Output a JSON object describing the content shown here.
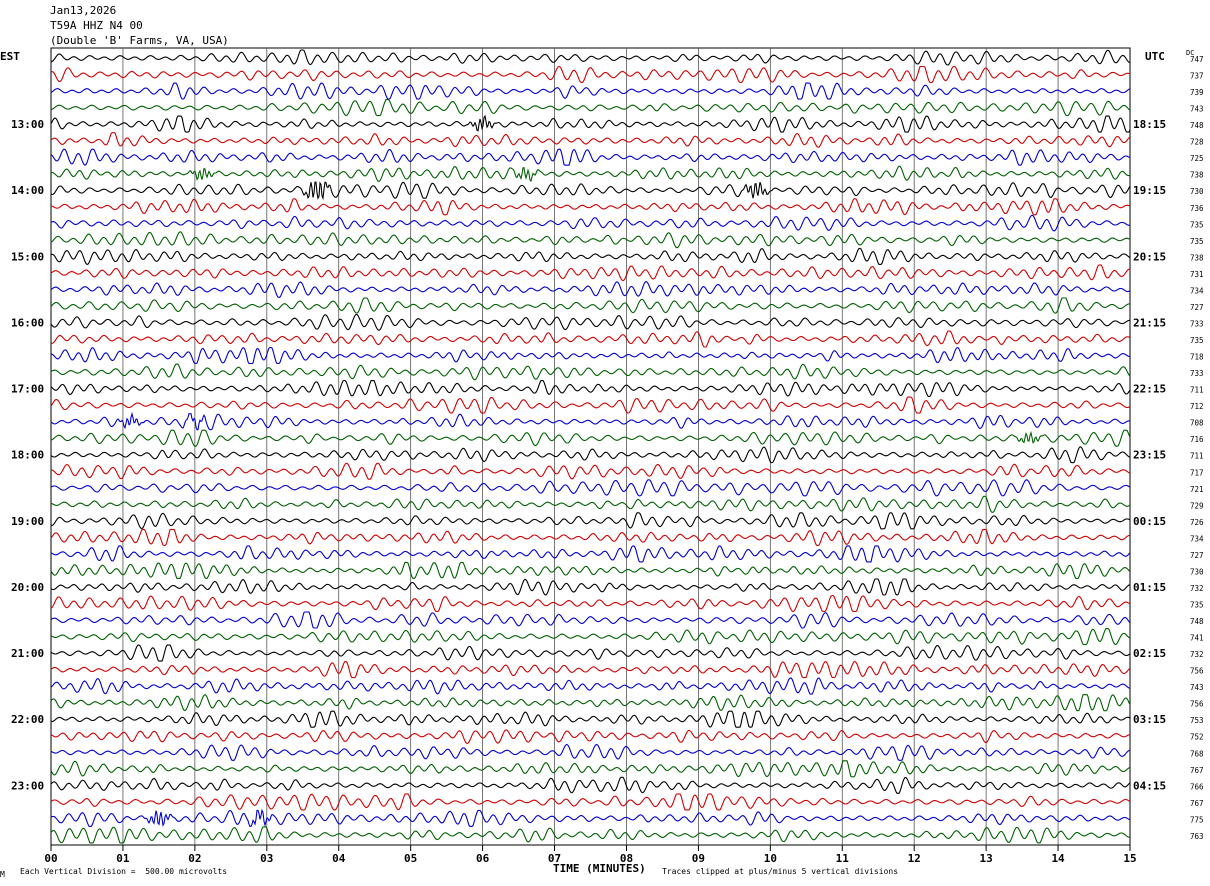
{
  "header": {
    "date": "Jan13,2026",
    "station": "T59A HHZ N4 00",
    "location": "(Double 'B' Farms, VA, USA)"
  },
  "left_timezone": "EST",
  "right_timezone": "UTC",
  "dc_label": "DC",
  "footer": {
    "scale_note": "Each Vertical Division =  500.00 microvolts",
    "clip_note": "Traces clipped at plus/minus 5 vertical divisions",
    "corner_mark": "M"
  },
  "colors": {
    "cycle": [
      "#000000",
      "#d00000",
      "#0000d0",
      "#006000"
    ],
    "grid": "#000000"
  },
  "chart_data": {
    "type": "line",
    "title": "Jan13,2026 T59A HHZ N4 00 (Double 'B' Farms, VA, USA)",
    "xlabel": "TIME (MINUTES)",
    "ylabel": "",
    "xlim": [
      0,
      15
    ],
    "x_ticks": [
      "00",
      "01",
      "02",
      "03",
      "04",
      "05",
      "06",
      "07",
      "08",
      "09",
      "10",
      "11",
      "12",
      "13",
      "14",
      "15"
    ],
    "grid": true,
    "trace_count": 48,
    "trace_minutes": 15,
    "left_hour_labels": [
      "13:00",
      "14:00",
      "15:00",
      "16:00",
      "17:00",
      "18:00",
      "19:00",
      "20:00",
      "21:00",
      "22:00",
      "23:00"
    ],
    "right_hour_labels": [
      "18:15",
      "19:15",
      "20:15",
      "21:15",
      "22:15",
      "23:15",
      "00:15",
      "01:15",
      "02:15",
      "03:15",
      "04:15"
    ],
    "hour_label_trace_start": 4,
    "hour_label_every": 4,
    "dc_values": [
      747,
      737,
      739,
      743,
      748,
      728,
      725,
      738,
      730,
      736,
      735,
      735,
      738,
      731,
      734,
      727,
      733,
      735,
      718,
      733,
      711,
      712,
      708,
      716,
      711,
      717,
      721,
      729,
      726,
      734,
      727,
      730,
      732,
      735,
      748,
      741,
      732,
      756,
      743,
      756,
      753,
      752,
      768,
      767,
      766,
      767,
      775,
      763
    ],
    "events": [
      {
        "trace": 4,
        "minute": 6.0,
        "amp": 1.3
      },
      {
        "trace": 7,
        "minute": 2.1,
        "amp": 1.1
      },
      {
        "trace": 7,
        "minute": 6.6,
        "amp": 1.1
      },
      {
        "trace": 8,
        "minute": 3.7,
        "amp": 2.6
      },
      {
        "trace": 8,
        "minute": 9.8,
        "amp": 1.6
      },
      {
        "trace": 22,
        "minute": 1.1,
        "amp": 1.0
      },
      {
        "trace": 22,
        "minute": 2.0,
        "amp": 1.0
      },
      {
        "trace": 23,
        "minute": 13.6,
        "amp": 1.0
      },
      {
        "trace": 46,
        "minute": 1.5,
        "amp": 1.5
      },
      {
        "trace": 46,
        "minute": 2.9,
        "amp": 1.4
      }
    ]
  }
}
